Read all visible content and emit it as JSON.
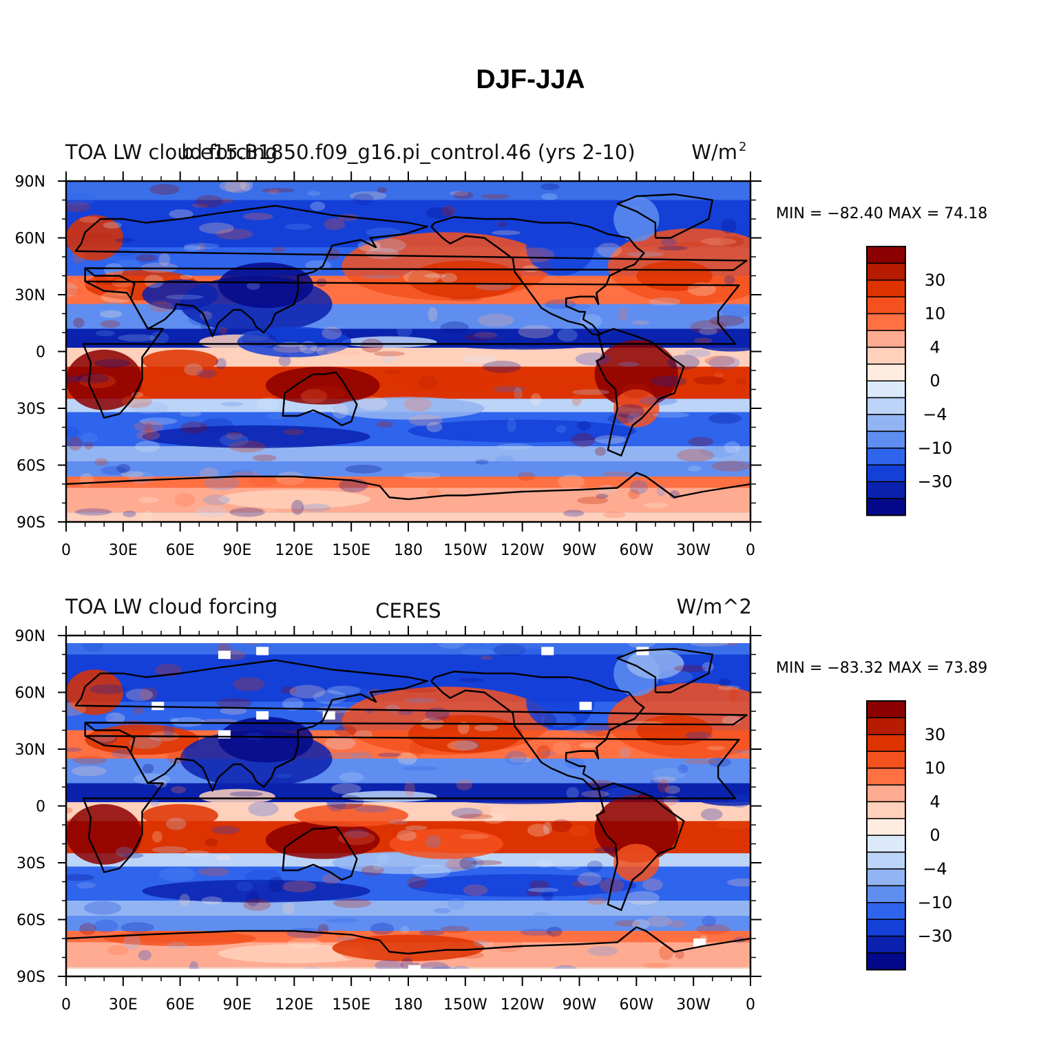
{
  "title": "DJF-JJA",
  "panels": [
    {
      "left_header": "TOA LW cloud forcing",
      "center_header": "b.e15.B1850.f09_g16.pi_control.46 (yrs 2-10)",
      "right_header": "W/m",
      "right_header_sup": "2",
      "stats": "MIN = −82.40  MAX =   74.18",
      "min": -82.4,
      "max": 74.18
    },
    {
      "left_header": "TOA LW cloud forcing",
      "center_header": "CERES",
      "right_header": "W/m^2",
      "right_header_sup": "",
      "stats": "MIN = −83.32  MAX =   73.89",
      "min": -83.32,
      "max": 73.89
    }
  ],
  "lat_ticks": [
    "90N",
    "60N",
    "30N",
    "0",
    "30S",
    "60S",
    "90S"
  ],
  "lon_ticks": [
    "0",
    "30E",
    "60E",
    "90E",
    "120E",
    "150E",
    "180",
    "150W",
    "120W",
    "90W",
    "60W",
    "30W",
    "0"
  ],
  "colorbar": {
    "labels": [
      "30",
      "10",
      "4",
      "0",
      "−4",
      "−10",
      "−30"
    ],
    "colors": [
      "#8b0000",
      "#b71c00",
      "#dd3300",
      "#f4511e",
      "#ff7043",
      "#ffab91",
      "#ffd0bb",
      "#ffece0",
      "#dbe9fa",
      "#bcd4f7",
      "#93b4f2",
      "#5f8ef0",
      "#2f64ed",
      "#1440d8",
      "#0a22ae",
      "#03098a"
    ]
  }
}
